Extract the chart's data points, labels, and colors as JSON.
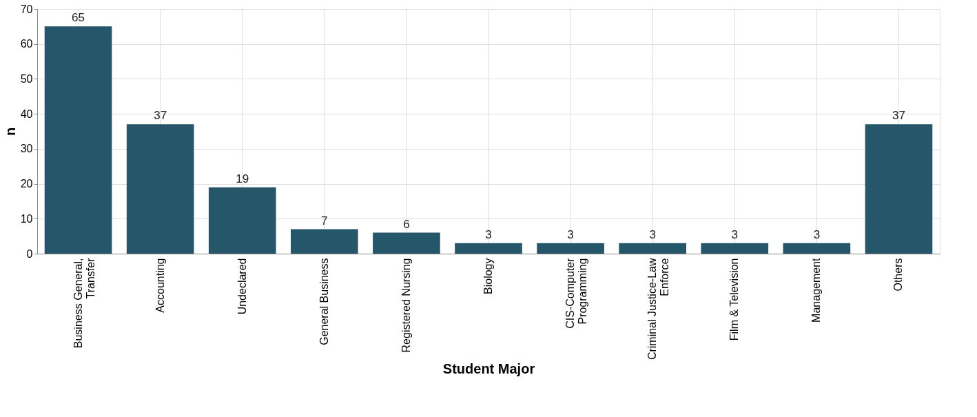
{
  "chart_data": {
    "type": "bar",
    "xlabel": "Student Major",
    "ylabel": "n",
    "categories": [
      "Business General,\nTransfer",
      "Accounting",
      "Undeclared",
      "General Business",
      "Registered Nursing",
      "Biology",
      "CIS-Computer\nProgramming",
      "Criminal Justice-Law\nEnforce",
      "Film & Television",
      "Management",
      "Others"
    ],
    "values": [
      65,
      37,
      19,
      7,
      6,
      3,
      3,
      3,
      3,
      3,
      37
    ],
    "color": "#26566a",
    "ylim": [
      0,
      70
    ],
    "yticks": [
      0,
      10,
      20,
      30,
      40,
      50,
      60,
      70
    ],
    "grid": true,
    "data_labels": true
  }
}
